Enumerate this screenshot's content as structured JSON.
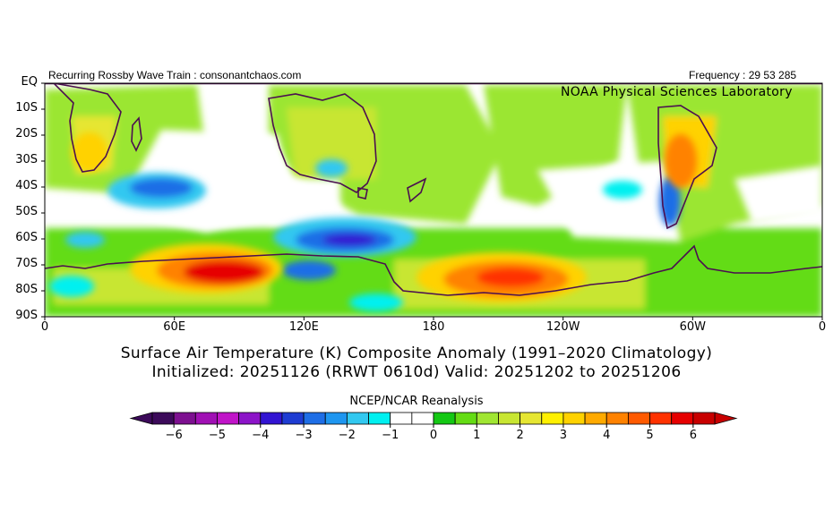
{
  "header": {
    "left": "Recurring Rossby Wave Train : consonantchaos.com",
    "right": "Frequency : 29 53 285",
    "lab": "NOAA Physical Sciences Laboratory"
  },
  "map": {
    "lat_labels": [
      "EQ",
      "10S",
      "20S",
      "30S",
      "40S",
      "50S",
      "60S",
      "70S",
      "80S",
      "90S"
    ],
    "lon_labels": [
      "0",
      "60E",
      "120E",
      "180",
      "120W",
      "60W",
      "0"
    ]
  },
  "titles": {
    "line1": "Surface Air Temperature (K) Composite Anomaly (1991–2020 Climatology)",
    "line2": "Initialized: 20251126 (RRWT 0610d) Valid: 20251202 to 20251206"
  },
  "colorbar": {
    "title": "NCEP/NCAR Reanalysis",
    "tick_labels": [
      "−6",
      "−5",
      "−4",
      "−3",
      "−2",
      "−1",
      "0",
      "1",
      "2",
      "3",
      "4",
      "5",
      "6"
    ],
    "colors": [
      "#3c0a5a",
      "#7d1090",
      "#a010b4",
      "#c014c8",
      "#8c14c8",
      "#3214d2",
      "#1e3cd2",
      "#1e6ee6",
      "#1e96f0",
      "#32c8f0",
      "#00f0f0",
      "#ffffff",
      "#ffffff",
      "#14c814",
      "#64dc14",
      "#a0e632",
      "#c8e632",
      "#e6e632",
      "#fff000",
      "#ffd200",
      "#ffaa00",
      "#ff8200",
      "#ff5a00",
      "#ff3200",
      "#e60000",
      "#c80000"
    ],
    "over_color": "#c80000",
    "under_color": "#3c0a5a"
  }
}
